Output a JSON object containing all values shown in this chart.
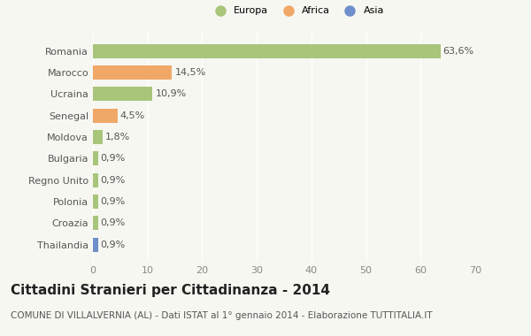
{
  "categories": [
    "Thailandia",
    "Croazia",
    "Polonia",
    "Regno Unito",
    "Bulgaria",
    "Moldova",
    "Senegal",
    "Ucraina",
    "Marocco",
    "Romania"
  ],
  "values": [
    0.9,
    0.9,
    0.9,
    0.9,
    0.9,
    1.8,
    4.5,
    10.9,
    14.5,
    63.6
  ],
  "colors": [
    "#6e8fca",
    "#a8c57a",
    "#a8c57a",
    "#a8c57a",
    "#a8c57a",
    "#a8c57a",
    "#f0a868",
    "#a8c57a",
    "#f0a868",
    "#a8c57a"
  ],
  "labels": [
    "0,9%",
    "0,9%",
    "0,9%",
    "0,9%",
    "0,9%",
    "1,8%",
    "4,5%",
    "10,9%",
    "14,5%",
    "63,6%"
  ],
  "legend_labels": [
    "Europa",
    "Africa",
    "Asia"
  ],
  "legend_colors": [
    "#a8c57a",
    "#f0a868",
    "#6e8fca"
  ],
  "title": "Cittadini Stranieri per Cittadinanza - 2014",
  "subtitle": "COMUNE DI VILLALVERNIA (AL) - Dati ISTAT al 1° gennaio 2014 - Elaborazione TUTTITALIA.IT",
  "xlim": [
    0,
    70
  ],
  "xticks": [
    0,
    10,
    20,
    30,
    40,
    50,
    60,
    70
  ],
  "background_color": "#f7f7f2",
  "bar_height": 0.65,
  "grid_color": "#ffffff",
  "title_fontsize": 11,
  "subtitle_fontsize": 7.5,
  "label_fontsize": 8,
  "tick_fontsize": 8
}
